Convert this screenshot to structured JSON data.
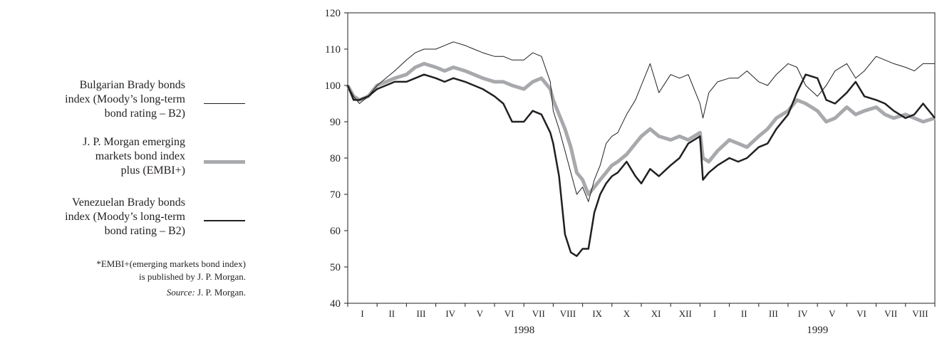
{
  "legend": [
    {
      "label": "Bulgarian Brady bonds\nindex (Moody’s long-term\nbond rating – B2)",
      "color": "#231f20"
    },
    {
      "label": "J. P. Morgan emerging\nmarkets bond index\nplus (EMBI+)",
      "color": "#a7a9ac"
    },
    {
      "label": "Venezuelan Brady bonds\nindex (Moody’s long-term\nbond rating – B2)",
      "color": "#231f20"
    }
  ],
  "notes": {
    "footnote": "*EMBI+(emerging markets bond index)\nis published by J. P. Morgan.",
    "source_prefix": "Source:",
    "source_text": " J. P. Morgan."
  },
  "chart_data": {
    "type": "line",
    "title": "",
    "xlabel": "",
    "ylabel": "",
    "ylim": [
      40,
      120
    ],
    "yticks": [
      40,
      50,
      60,
      70,
      80,
      90,
      100,
      110,
      120
    ],
    "xlim": [
      0,
      20
    ],
    "month_ticks": [
      "I",
      "II",
      "III",
      "IV",
      "V",
      "VI",
      "VII",
      "VIII",
      "IX",
      "X",
      "XI",
      "XII",
      "I",
      "II",
      "III",
      "IV",
      "V",
      "VI",
      "VII",
      "VIII"
    ],
    "year_labels": [
      {
        "label": "1998",
        "at": 6
      },
      {
        "label": "1999",
        "at": 16
      }
    ],
    "grid": false,
    "series": [
      {
        "name": "Bulgarian Brady bonds index (Moody’s long-term bond rating – B2)",
        "color": "#231f20",
        "width": 1,
        "x": [
          0,
          0.2,
          0.4,
          0.7,
          1.0,
          1.3,
          1.6,
          2.0,
          2.3,
          2.6,
          3.0,
          3.3,
          3.6,
          4.0,
          4.3,
          4.6,
          5.0,
          5.3,
          5.6,
          6.0,
          6.3,
          6.6,
          6.9,
          7.0,
          7.2,
          7.4,
          7.6,
          7.8,
          8.0,
          8.2,
          8.4,
          8.6,
          8.8,
          9.0,
          9.2,
          9.5,
          9.8,
          10.0,
          10.3,
          10.6,
          11.0,
          11.3,
          11.6,
          12.0,
          12.1,
          12.3,
          12.6,
          13.0,
          13.3,
          13.6,
          14.0,
          14.3,
          14.6,
          15.0,
          15.3,
          15.6,
          16.0,
          16.3,
          16.6,
          17.0,
          17.3,
          17.6,
          18.0,
          18.3,
          18.6,
          19.0,
          19.3,
          19.6,
          20.0
        ],
        "y": [
          100,
          97,
          95,
          97,
          100,
          102,
          104,
          107,
          109,
          110,
          110,
          111,
          112,
          111,
          110,
          109,
          108,
          108,
          107,
          107,
          109,
          108,
          101,
          93,
          88,
          82,
          76,
          70,
          72,
          68,
          74,
          78,
          84,
          86,
          87,
          92,
          96,
          100,
          106,
          98,
          103,
          102,
          103,
          95,
          91,
          98,
          101,
          102,
          102,
          104,
          101,
          100,
          103,
          106,
          105,
          100,
          97,
          100,
          104,
          106,
          102,
          104,
          108,
          107,
          106,
          105,
          104,
          106,
          106
        ]
      },
      {
        "name": "J. P. Morgan emerging markets bond index plus (EMBI+)",
        "color": "#a7a9ac",
        "width": 5,
        "x": [
          0,
          0.2,
          0.4,
          0.7,
          1.0,
          1.3,
          1.6,
          2.0,
          2.3,
          2.6,
          3.0,
          3.3,
          3.6,
          4.0,
          4.3,
          4.6,
          5.0,
          5.3,
          5.6,
          6.0,
          6.3,
          6.6,
          6.9,
          7.0,
          7.2,
          7.4,
          7.6,
          7.8,
          8.0,
          8.2,
          8.4,
          8.6,
          8.8,
          9.0,
          9.2,
          9.5,
          9.8,
          10.0,
          10.3,
          10.6,
          11.0,
          11.3,
          11.6,
          12.0,
          12.1,
          12.3,
          12.6,
          13.0,
          13.3,
          13.6,
          14.0,
          14.3,
          14.6,
          15.0,
          15.3,
          15.6,
          16.0,
          16.3,
          16.6,
          17.0,
          17.3,
          17.6,
          18.0,
          18.3,
          18.6,
          19.0,
          19.3,
          19.6,
          20.0
        ],
        "y": [
          100,
          97,
          96,
          97,
          100,
          101,
          102,
          103,
          105,
          106,
          105,
          104,
          105,
          104,
          103,
          102,
          101,
          101,
          100,
          99,
          101,
          102,
          99,
          96,
          92,
          88,
          83,
          76,
          74,
          70,
          72,
          74,
          76,
          78,
          79,
          81,
          84,
          86,
          88,
          86,
          85,
          86,
          85,
          87,
          80,
          79,
          82,
          85,
          84,
          83,
          86,
          88,
          91,
          93,
          96,
          95,
          93,
          90,
          91,
          94,
          92,
          93,
          94,
          92,
          91,
          92,
          91,
          90,
          91
        ]
      },
      {
        "name": "Venezuelan Brady bonds index (Moody’s long-term bond rating – B2)",
        "color": "#231f20",
        "width": 2.5,
        "x": [
          0,
          0.2,
          0.4,
          0.7,
          1.0,
          1.3,
          1.6,
          2.0,
          2.3,
          2.6,
          3.0,
          3.3,
          3.6,
          4.0,
          4.3,
          4.6,
          5.0,
          5.3,
          5.6,
          6.0,
          6.3,
          6.6,
          6.9,
          7.0,
          7.2,
          7.4,
          7.6,
          7.8,
          8.0,
          8.2,
          8.4,
          8.6,
          8.8,
          9.0,
          9.2,
          9.5,
          9.8,
          10.0,
          10.3,
          10.6,
          11.0,
          11.3,
          11.6,
          12.0,
          12.1,
          12.3,
          12.6,
          13.0,
          13.3,
          13.6,
          14.0,
          14.3,
          14.6,
          15.0,
          15.3,
          15.6,
          16.0,
          16.3,
          16.6,
          17.0,
          17.3,
          17.6,
          18.0,
          18.3,
          18.6,
          19.0,
          19.3,
          19.6,
          20.0
        ],
        "y": [
          100,
          96,
          96,
          97,
          99,
          100,
          101,
          101,
          102,
          103,
          102,
          101,
          102,
          101,
          100,
          99,
          97,
          95,
          90,
          90,
          93,
          92,
          87,
          84,
          75,
          59,
          54,
          53,
          55,
          55,
          65,
          70,
          73,
          75,
          76,
          79,
          75,
          73,
          77,
          75,
          78,
          80,
          84,
          86,
          74,
          76,
          78,
          80,
          79,
          80,
          83,
          84,
          88,
          92,
          98,
          103,
          102,
          96,
          95,
          98,
          101,
          97,
          96,
          95,
          93,
          91,
          92,
          95,
          91
        ]
      }
    ]
  }
}
